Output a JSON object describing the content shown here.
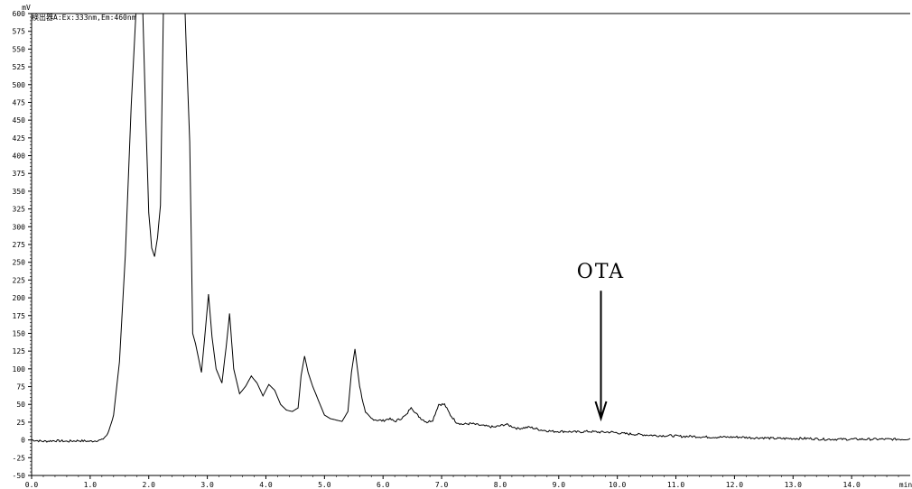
{
  "chart_data": {
    "type": "line",
    "y_unit": "mV",
    "x_unit": "min",
    "detector_label": "検出器A:Ex:333nm,Em:460nm",
    "xlim": [
      0.0,
      15.0
    ],
    "ylim": [
      -50,
      600
    ],
    "x_ticks": [
      "0.0",
      "1.0",
      "2.0",
      "3.0",
      "4.0",
      "5.0",
      "6.0",
      "7.0",
      "8.0",
      "9.0",
      "10.0",
      "11.0",
      "12.0",
      "13.0",
      "14.0"
    ],
    "y_ticks": [
      "-50",
      "-25",
      "0",
      "25",
      "50",
      "75",
      "100",
      "125",
      "150",
      "175",
      "200",
      "225",
      "250",
      "275",
      "300",
      "325",
      "350",
      "375",
      "400",
      "425",
      "450",
      "475",
      "500",
      "525",
      "550",
      "575",
      "600"
    ],
    "annotation": {
      "text": "OTA",
      "x": 9.72,
      "y_from": 210,
      "y_to": 30
    },
    "series": [
      {
        "x": [
          0.0,
          0.2,
          0.4,
          0.6,
          0.8,
          1.0,
          1.2,
          1.3,
          1.4,
          1.5,
          1.6,
          1.7,
          1.78,
          1.82,
          1.9,
          1.95,
          2.0,
          2.05,
          2.1,
          2.15,
          2.2,
          2.25,
          2.3,
          2.4,
          2.5,
          2.58,
          2.62,
          2.7,
          2.75,
          2.8,
          2.9,
          2.95,
          3.02,
          3.08,
          3.15,
          3.25,
          3.32,
          3.38,
          3.45,
          3.55,
          3.65,
          3.75,
          3.85,
          3.95,
          4.05,
          4.15,
          4.25,
          4.35,
          4.45,
          4.55,
          4.6,
          4.66,
          4.72,
          4.8,
          4.9,
          5.0,
          5.1,
          5.2,
          5.3,
          5.4,
          5.46,
          5.52,
          5.6,
          5.7,
          5.8,
          5.9,
          6.0,
          6.1,
          6.2,
          6.3,
          6.4,
          6.48,
          6.55,
          6.65,
          6.75,
          6.85,
          6.95,
          7.05,
          7.15,
          7.25,
          7.35,
          7.5,
          7.7,
          7.9,
          8.1,
          8.3,
          8.5,
          8.7,
          8.9,
          9.1,
          9.3,
          9.5,
          9.7,
          9.9,
          10.1,
          10.3,
          10.5,
          10.7,
          10.9,
          11.1,
          11.3,
          11.5,
          11.7,
          11.9,
          12.1,
          12.3,
          12.5,
          12.7,
          12.9,
          13.1,
          13.3,
          13.5,
          13.7,
          13.9,
          14.1,
          14.3,
          14.5,
          14.7,
          14.9,
          15.0
        ],
        "y": [
          0,
          -2,
          -1,
          -2,
          -1,
          -2,
          0,
          8,
          35,
          110,
          260,
          470,
          600,
          600,
          600,
          450,
          320,
          270,
          258,
          285,
          330,
          600,
          600,
          600,
          600,
          600,
          600,
          420,
          150,
          135,
          95,
          140,
          205,
          145,
          100,
          80,
          130,
          178,
          100,
          65,
          75,
          90,
          80,
          62,
          78,
          70,
          50,
          42,
          40,
          45,
          90,
          118,
          95,
          75,
          55,
          35,
          30,
          28,
          26,
          40,
          95,
          128,
          75,
          38,
          30,
          28,
          27,
          30,
          26,
          30,
          35,
          47,
          38,
          30,
          25,
          28,
          50,
          50,
          35,
          25,
          22,
          23,
          20,
          18,
          22,
          16,
          18,
          14,
          12,
          12,
          11,
          12,
          11,
          11,
          9,
          8,
          7,
          6,
          6,
          5,
          5,
          4,
          4,
          4,
          4,
          3,
          3,
          2,
          2,
          2,
          2,
          1,
          1,
          1,
          1,
          1,
          1,
          1,
          1,
          2
        ]
      }
    ]
  }
}
